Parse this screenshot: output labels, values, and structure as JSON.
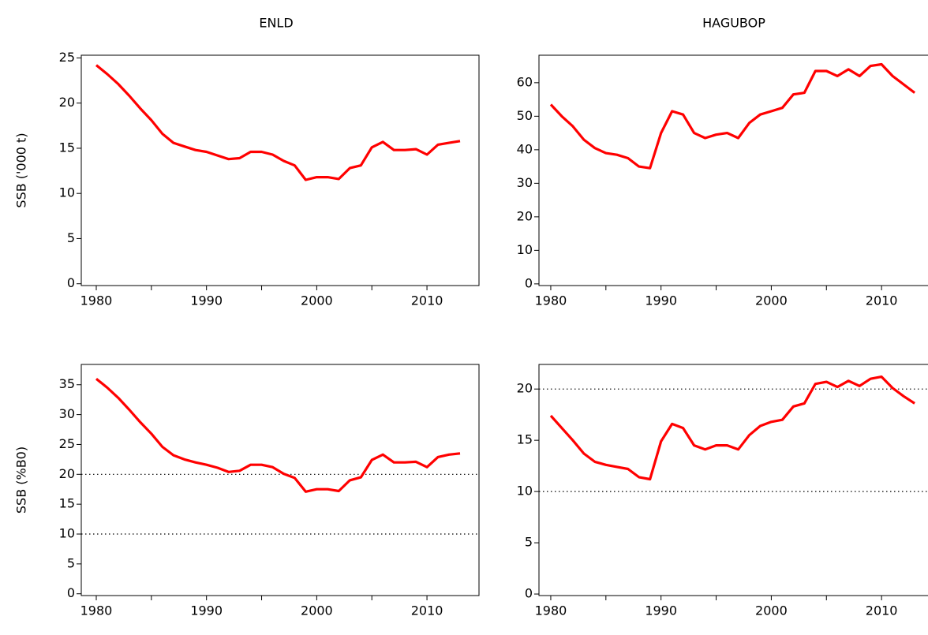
{
  "chart_data": [
    {
      "type": "line",
      "title": "ENLD",
      "ylabel": "SSB ('000 t)",
      "color": "#ff0000",
      "x": [
        1980,
        1981,
        1982,
        1983,
        1984,
        1985,
        1986,
        1987,
        1988,
        1989,
        1990,
        1991,
        1992,
        1993,
        1994,
        1995,
        1996,
        1997,
        1998,
        1999,
        2000,
        2001,
        2002,
        2003,
        2004,
        2005,
        2006,
        2007,
        2008,
        2009,
        2010,
        2011,
        2012,
        2013
      ],
      "values": [
        24.2,
        23.2,
        22.1,
        20.8,
        19.4,
        18.1,
        16.6,
        15.6,
        15.2,
        14.8,
        14.6,
        14.2,
        13.8,
        13.9,
        14.6,
        14.6,
        14.3,
        13.6,
        13.1,
        11.5,
        11.8,
        11.8,
        11.6,
        12.8,
        13.1,
        15.1,
        15.7,
        14.8,
        14.8,
        14.9,
        14.3,
        15.4,
        15.6,
        15.8
      ],
      "xlim": [
        1978.64,
        2014.72
      ],
      "xticks": [
        1980,
        1990,
        2000,
        2010
      ],
      "xticks_minor": [
        1985,
        1995,
        2005
      ],
      "ylim": [
        -0.2,
        25.3
      ],
      "yticks": [
        0,
        5,
        10,
        15,
        20,
        25
      ]
    },
    {
      "type": "line",
      "title": "HAGUBOP",
      "color": "#ff0000",
      "x": [
        1980,
        1981,
        1982,
        1983,
        1984,
        1985,
        1986,
        1987,
        1988,
        1989,
        1990,
        1991,
        1992,
        1993,
        1994,
        1995,
        1996,
        1997,
        1998,
        1999,
        2000,
        2001,
        2002,
        2003,
        2004,
        2005,
        2006,
        2007,
        2008,
        2009,
        2010,
        2011,
        2012,
        2013
      ],
      "values": [
        53.5,
        50,
        47,
        43,
        40.5,
        39,
        38.5,
        37.5,
        35,
        34.5,
        45,
        51.5,
        50.5,
        45,
        43.5,
        44.5,
        45,
        43.5,
        48,
        50.5,
        51.5,
        52.5,
        56.5,
        57,
        63.5,
        63.5,
        62,
        64,
        62,
        65,
        65.5,
        62,
        59.5,
        57
      ],
      "xlim": [
        1978.93,
        2015.0
      ],
      "xticks": [
        1980,
        1990,
        2000,
        2010
      ],
      "xticks_minor": [
        1985,
        1995,
        2005
      ],
      "ylim": [
        -0.5,
        68.2
      ],
      "yticks": [
        0,
        10,
        20,
        30,
        40,
        50,
        60
      ]
    },
    {
      "type": "line",
      "ylabel": "SSB (%B0)",
      "color": "#ff0000",
      "x": [
        1980,
        1981,
        1982,
        1983,
        1984,
        1985,
        1986,
        1987,
        1988,
        1989,
        1990,
        1991,
        1992,
        1993,
        1994,
        1995,
        1996,
        1997,
        1998,
        1999,
        2000,
        2001,
        2002,
        2003,
        2004,
        2005,
        2006,
        2007,
        2008,
        2009,
        2010,
        2011,
        2012,
        2013
      ],
      "values": [
        36.0,
        34.5,
        32.8,
        30.8,
        28.7,
        26.8,
        24.6,
        23.2,
        22.5,
        22.0,
        21.6,
        21.1,
        20.4,
        20.6,
        21.6,
        21.6,
        21.2,
        20.1,
        19.4,
        17.1,
        17.5,
        17.5,
        17.2,
        19.0,
        19.5,
        22.4,
        23.3,
        22.0,
        22.0,
        22.1,
        21.2,
        22.9,
        23.3,
        23.5
      ],
      "xlim": [
        1978.64,
        2014.72
      ],
      "xticks": [
        1980,
        1990,
        2000,
        2010
      ],
      "xticks_minor": [
        1985,
        1995,
        2005
      ],
      "ylim": [
        -0.3,
        38.4
      ],
      "yticks": [
        0,
        5,
        10,
        15,
        20,
        25,
        30,
        35
      ],
      "hlines": [
        10,
        20
      ]
    },
    {
      "type": "line",
      "color": "#ff0000",
      "x": [
        1980,
        1981,
        1982,
        1983,
        1984,
        1985,
        1986,
        1987,
        1988,
        1989,
        1990,
        1991,
        1992,
        1993,
        1994,
        1995,
        1996,
        1997,
        1998,
        1999,
        2000,
        2001,
        2002,
        2003,
        2004,
        2005,
        2006,
        2007,
        2008,
        2009,
        2010,
        2011,
        2012,
        2013
      ],
      "values": [
        17.4,
        16.2,
        15.0,
        13.7,
        12.9,
        12.6,
        12.4,
        12.2,
        11.4,
        11.2,
        14.9,
        16.6,
        16.2,
        14.5,
        14.1,
        14.5,
        14.5,
        14.1,
        15.5,
        16.4,
        16.8,
        17.0,
        18.3,
        18.6,
        20.5,
        20.7,
        20.2,
        20.8,
        20.3,
        21.0,
        21.2,
        20.1,
        19.3,
        18.6
      ],
      "xlim": [
        1978.93,
        2015.0
      ],
      "xticks": [
        1980,
        1990,
        2000,
        2010
      ],
      "xticks_minor": [
        1985,
        1995,
        2005
      ],
      "ylim": [
        -0.15,
        22.4
      ],
      "yticks": [
        0,
        5,
        10,
        15,
        20
      ],
      "hlines": [
        10,
        20
      ]
    }
  ]
}
